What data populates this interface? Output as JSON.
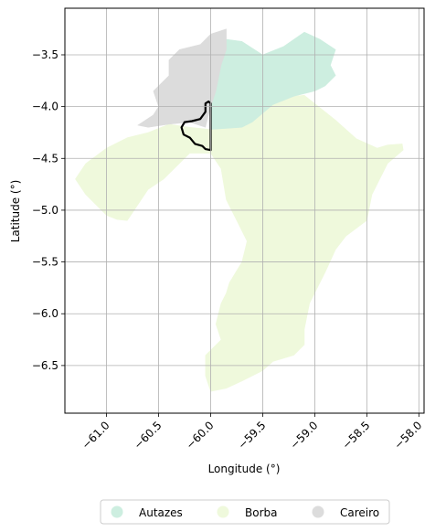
{
  "chart_data": {
    "type": "map",
    "xlabel": "Longitude (°)",
    "ylabel": "Latitude (°)",
    "xlim": [
      -61.4,
      -57.95
    ],
    "ylim": [
      -6.96,
      -3.05
    ],
    "xticks": [
      -61.0,
      -60.5,
      -60.0,
      -59.5,
      -59.0,
      -58.5,
      -58.0
    ],
    "xtick_labels": [
      "−61.0",
      "−60.5",
      "−60.0",
      "−59.5",
      "−59.0",
      "−58.5",
      "−58.0"
    ],
    "yticks": [
      -3.5,
      -4.0,
      -4.5,
      -5.0,
      -5.5,
      -6.0,
      -6.5
    ],
    "ytick_labels": [
      "−3.5",
      "−4.0",
      "−4.5",
      "−5.0",
      "−5.5",
      "−6.0",
      "−6.5"
    ],
    "grid": true,
    "legend_position": "bottom-center",
    "legend": [
      {
        "name": "Autazes",
        "color": "#cdeee0"
      },
      {
        "name": "Borba",
        "color": "#eff9dc"
      },
      {
        "name": "Careiro",
        "color": "#dcdcdc"
      }
    ],
    "regions": [
      {
        "name": "Borba",
        "color": "#eff9dc",
        "coords": [
          [
            -60.4,
            -4.17
          ],
          [
            -60.2,
            -4.2
          ],
          [
            -60.0,
            -4.22
          ],
          [
            -59.9,
            -4.16
          ],
          [
            -59.7,
            -4.03
          ],
          [
            -59.5,
            -4.0
          ],
          [
            -59.4,
            -3.98
          ],
          [
            -59.2,
            -3.9
          ],
          [
            -59.1,
            -3.89
          ],
          [
            -59.0,
            -3.97
          ],
          [
            -58.8,
            -4.13
          ],
          [
            -58.6,
            -4.31
          ],
          [
            -58.4,
            -4.4
          ],
          [
            -58.3,
            -4.37
          ],
          [
            -58.16,
            -4.36
          ],
          [
            -58.15,
            -4.42
          ],
          [
            -58.3,
            -4.55
          ],
          [
            -58.45,
            -4.85
          ],
          [
            -58.5,
            -5.1
          ],
          [
            -58.7,
            -5.25
          ],
          [
            -58.8,
            -5.38
          ],
          [
            -58.9,
            -5.6
          ],
          [
            -59.05,
            -5.9
          ],
          [
            -59.1,
            -6.15
          ],
          [
            -59.1,
            -6.3
          ],
          [
            -59.2,
            -6.4
          ],
          [
            -59.4,
            -6.46
          ],
          [
            -59.5,
            -6.55
          ],
          [
            -59.7,
            -6.65
          ],
          [
            -59.85,
            -6.72
          ],
          [
            -60.0,
            -6.75
          ],
          [
            -60.05,
            -6.6
          ],
          [
            -60.05,
            -6.4
          ],
          [
            -59.9,
            -6.25
          ],
          [
            -59.95,
            -6.1
          ],
          [
            -59.9,
            -5.9
          ],
          [
            -59.85,
            -5.8
          ],
          [
            -59.82,
            -5.7
          ],
          [
            -59.7,
            -5.5
          ],
          [
            -59.65,
            -5.3
          ],
          [
            -59.75,
            -5.1
          ],
          [
            -59.85,
            -4.9
          ],
          [
            -59.9,
            -4.6
          ],
          [
            -60.0,
            -4.45
          ],
          [
            -60.2,
            -4.45
          ],
          [
            -60.35,
            -4.6
          ],
          [
            -60.45,
            -4.7
          ],
          [
            -60.6,
            -4.8
          ],
          [
            -60.7,
            -4.95
          ],
          [
            -60.8,
            -5.1
          ],
          [
            -60.9,
            -5.09
          ],
          [
            -61.0,
            -5.05
          ],
          [
            -61.1,
            -4.95
          ],
          [
            -61.2,
            -4.85
          ],
          [
            -61.3,
            -4.7
          ],
          [
            -61.2,
            -4.55
          ],
          [
            -61.0,
            -4.4
          ],
          [
            -60.8,
            -4.3
          ],
          [
            -60.6,
            -4.25
          ]
        ]
      },
      {
        "name": "Autazes",
        "color": "#cdeee0",
        "coords": [
          [
            -60.0,
            -4.22
          ],
          [
            -59.7,
            -4.2
          ],
          [
            -59.6,
            -4.15
          ],
          [
            -59.4,
            -3.98
          ],
          [
            -59.2,
            -3.9
          ],
          [
            -59.0,
            -3.85
          ],
          [
            -58.9,
            -3.8
          ],
          [
            -58.8,
            -3.7
          ],
          [
            -58.85,
            -3.6
          ],
          [
            -58.8,
            -3.45
          ],
          [
            -58.95,
            -3.35
          ],
          [
            -59.1,
            -3.28
          ],
          [
            -59.3,
            -3.42
          ],
          [
            -59.5,
            -3.5
          ],
          [
            -59.7,
            -3.37
          ],
          [
            -59.85,
            -3.35
          ],
          [
            -59.9,
            -3.6
          ],
          [
            -59.95,
            -3.85
          ],
          [
            -60.0,
            -4.0
          ]
        ]
      },
      {
        "name": "Careiro",
        "color": "#dcdcdc",
        "coords": [
          [
            -60.7,
            -4.18
          ],
          [
            -60.55,
            -4.08
          ],
          [
            -60.5,
            -4.0
          ],
          [
            -60.55,
            -3.85
          ],
          [
            -60.4,
            -3.7
          ],
          [
            -60.4,
            -3.55
          ],
          [
            -60.3,
            -3.45
          ],
          [
            -60.1,
            -3.4
          ],
          [
            -60.0,
            -3.3
          ],
          [
            -59.85,
            -3.25
          ],
          [
            -59.85,
            -3.45
          ],
          [
            -59.9,
            -3.6
          ],
          [
            -59.95,
            -3.85
          ],
          [
            -60.0,
            -4.0
          ],
          [
            -60.05,
            -4.2
          ],
          [
            -60.2,
            -4.15
          ],
          [
            -60.4,
            -4.17
          ],
          [
            -60.6,
            -4.2
          ]
        ]
      }
    ],
    "highlight": {
      "color": "#000000",
      "coords": [
        [
          -60.05,
          -3.97
        ],
        [
          -60.02,
          -3.95
        ],
        [
          -60.0,
          -3.97
        ],
        [
          -60.0,
          -4.42
        ],
        [
          -60.05,
          -4.41
        ],
        [
          -60.08,
          -4.38
        ],
        [
          -60.15,
          -4.36
        ],
        [
          -60.2,
          -4.3
        ],
        [
          -60.26,
          -4.27
        ],
        [
          -60.28,
          -4.2
        ],
        [
          -60.25,
          -4.15
        ],
        [
          -60.18,
          -4.14
        ],
        [
          -60.1,
          -4.12
        ],
        [
          -60.05,
          -4.05
        ]
      ]
    }
  }
}
